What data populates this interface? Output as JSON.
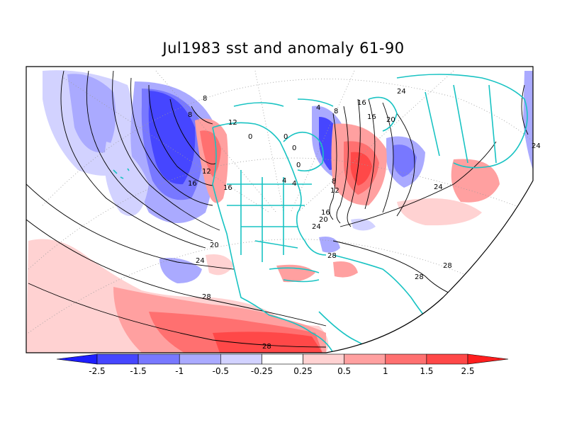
{
  "title": "Jul1983 sst and anomaly 61-90",
  "contour_labels": {
    "c1": "8",
    "c2": "8",
    "c3": "12",
    "c4": "16",
    "c5": "16",
    "c6": "20",
    "c7": "24",
    "c8": "28",
    "c9": "28",
    "c10": "0",
    "c11": "0",
    "c12": "0",
    "c13": "4",
    "c14": "0",
    "c15": "4",
    "c16": "8",
    "c17": "12",
    "c18": "16",
    "c19": "16",
    "c20": "20",
    "c21": "24",
    "c22": "24",
    "c23": "28",
    "c24": "28",
    "c25": "28",
    "c26": "24",
    "c27": "24",
    "c28": "20",
    "c29": "16",
    "c30": "12",
    "c31": "8",
    "c32": "4"
  },
  "colorbar": {
    "labels": [
      "-2.5",
      "-1.5",
      "-1",
      "-0.5",
      "-0.25",
      "0.25",
      "0.5",
      "1",
      "1.5",
      "2.5"
    ],
    "colors": [
      "#1e1eff",
      "#4646ff",
      "#7878ff",
      "#aaaaff",
      "#d2d2ff",
      "#ffffff",
      "#ffd2d2",
      "#ffa0a0",
      "#ff7070",
      "#ff4848",
      "#ff1e1e"
    ]
  },
  "colors": {
    "coast": "#19c3c3",
    "contour": "#000000",
    "grid": "#9a9a9a",
    "frame": "#000000"
  }
}
